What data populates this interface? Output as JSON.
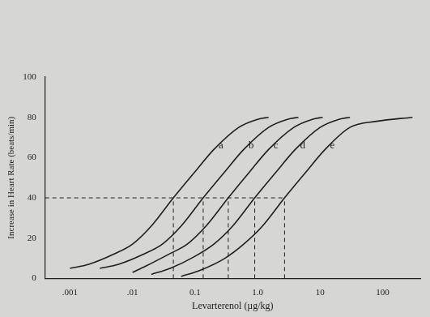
{
  "chart_data": {
    "type": "line",
    "x_label": "Levarterenol (µg/kg)",
    "y_label": "Increase in Heart Rate (beats/min)",
    "log": "x",
    "grid": false,
    "xlim": [
      0.0004,
      400
    ],
    "xticks": [
      {
        "value": 0.001,
        "label": ".001"
      },
      {
        "value": 0.01,
        "label": ".01"
      },
      {
        "value": 0.1,
        "label": "0.1"
      },
      {
        "value": 1,
        "label": "1.0"
      },
      10,
      100
    ],
    "ylim": [
      0,
      100
    ],
    "yticks": [
      0,
      20,
      40,
      60,
      80,
      100
    ],
    "series": [
      {
        "name": "a",
        "color": "#1e1e1e",
        "x": [
          0.001,
          0.002,
          0.005,
          0.01,
          0.02,
          0.045,
          0.1,
          0.2,
          0.5,
          1,
          1.5
        ],
        "values": [
          5,
          7,
          12,
          17,
          26,
          40,
          53,
          64,
          75,
          79,
          80
        ]
      },
      {
        "name": "b",
        "color": "#1e1e1e",
        "x": [
          0.003,
          0.006,
          0.015,
          0.03,
          0.06,
          0.135,
          0.3,
          0.6,
          1.5,
          3,
          4.5
        ],
        "values": [
          5,
          7,
          12,
          17,
          26,
          40,
          53,
          64,
          75,
          79,
          80
        ]
      },
      {
        "name": "c",
        "color": "#1e1e1e",
        "x": [
          0.01,
          0.016,
          0.038,
          0.075,
          0.15,
          0.34,
          0.75,
          1.5,
          3.8,
          7.5,
          11
        ],
        "values": [
          3,
          6,
          12,
          17,
          26,
          40,
          53,
          64,
          75,
          79,
          80
        ]
      },
      {
        "name": "d",
        "color": "#1e1e1e",
        "x": [
          0.02,
          0.04,
          0.1,
          0.2,
          0.4,
          0.9,
          2,
          4,
          10,
          20,
          30
        ],
        "values": [
          2,
          5,
          11,
          17,
          26,
          40,
          53,
          64,
          75,
          79,
          80
        ]
      },
      {
        "name": "e",
        "color": "#1e1e1e",
        "x": [
          0.06,
          0.12,
          0.3,
          0.6,
          1.2,
          2.7,
          6,
          12,
          30,
          80,
          300
        ],
        "values": [
          1,
          4,
          10,
          17,
          26,
          40,
          53,
          64,
          75,
          78,
          80
        ]
      }
    ],
    "reference_line": {
      "y": 40,
      "x": [
        0.045,
        0.135,
        0.34,
        0.9,
        2.7
      ],
      "line_style": "dashed"
    }
  }
}
